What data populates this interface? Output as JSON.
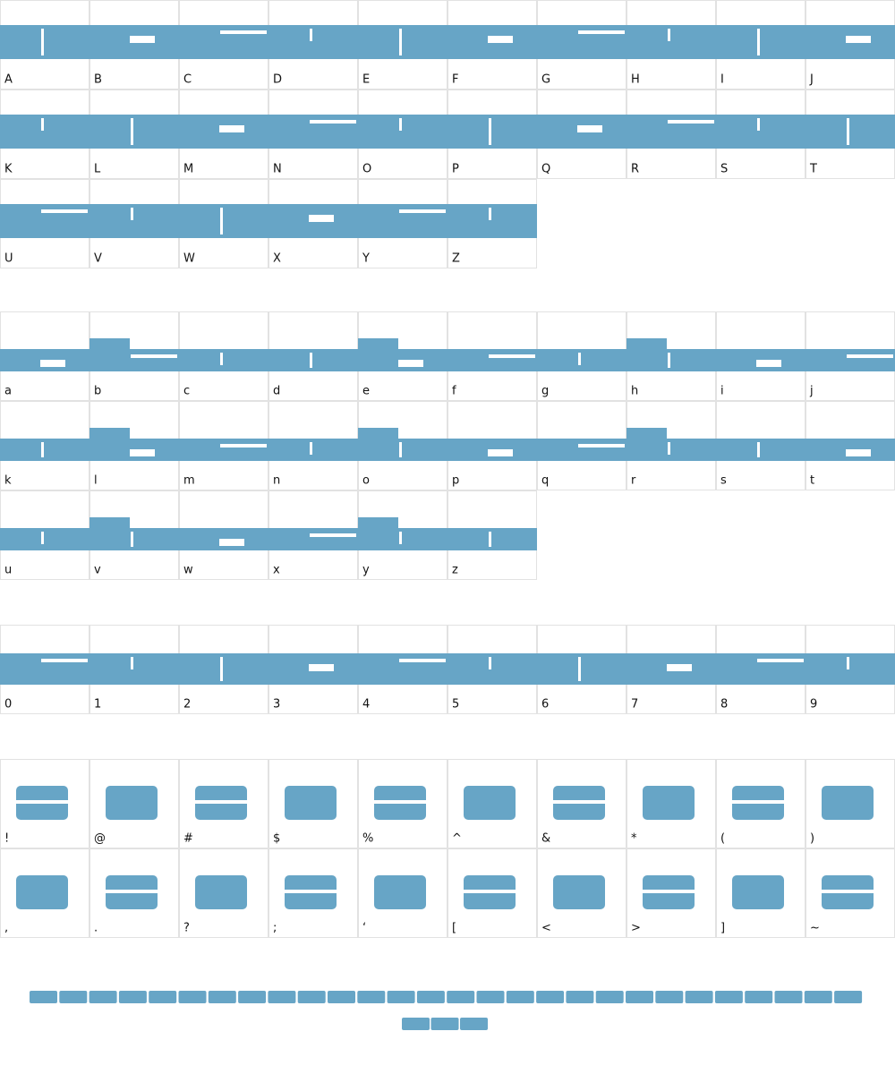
{
  "sections": [
    {
      "rows": [
        [
          "A",
          "B",
          "C",
          "D",
          "E",
          "F",
          "G",
          "H",
          "I",
          "J"
        ],
        [
          "K",
          "L",
          "M",
          "N",
          "O",
          "P",
          "Q",
          "R",
          "S",
          "T"
        ],
        [
          "U",
          "V",
          "W",
          "X",
          "Y",
          "Z"
        ]
      ]
    },
    {
      "rows": [
        [
          "a",
          "b",
          "c",
          "d",
          "e",
          "f",
          "g",
          "h",
          "i",
          "j"
        ],
        [
          "k",
          "l",
          "m",
          "n",
          "o",
          "p",
          "q",
          "r",
          "s",
          "t"
        ],
        [
          "u",
          "v",
          "w",
          "x",
          "y",
          "z"
        ]
      ]
    },
    {
      "rows": [
        [
          "0",
          "1",
          "2",
          "3",
          "4",
          "5",
          "6",
          "7",
          "8",
          "9"
        ]
      ]
    },
    {
      "rows": [
        [
          "!",
          "@",
          "#",
          "$",
          "%",
          "^",
          "&",
          "*",
          "(",
          ")"
        ],
        [
          ",",
          ".",
          "?",
          ";",
          "‘",
          "[",
          "<",
          ">",
          "]",
          "~"
        ]
      ]
    }
  ]
}
